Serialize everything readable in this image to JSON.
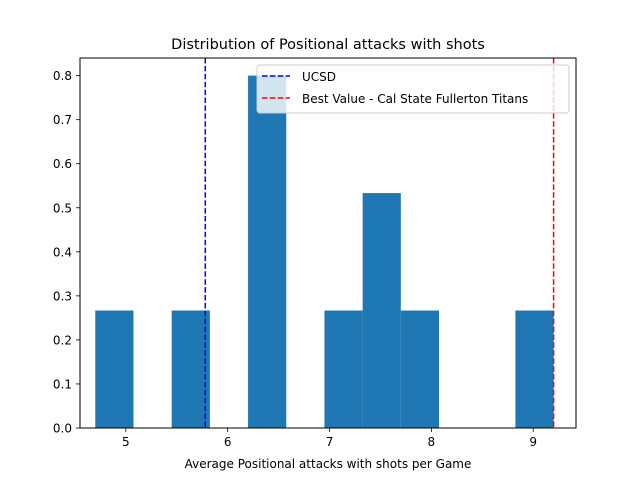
{
  "chart_data": {
    "type": "bar",
    "title": "Distribution of Positional attacks with shots",
    "xlabel": "Average Positional attacks with shots per Game",
    "ylabel": "",
    "xlim": [
      4.55,
      9.42
    ],
    "ylim": [
      0,
      0.84
    ],
    "x_ticks": [
      5,
      6,
      7,
      8,
      9
    ],
    "y_ticks": [
      0.0,
      0.1,
      0.2,
      0.3,
      0.4,
      0.5,
      0.6,
      0.7,
      0.8
    ],
    "grid": false,
    "legend_position": "upper right",
    "bar_color": "#1f77b4",
    "bins": [
      {
        "x0": 4.7,
        "x1": 5.075,
        "value": 0.2667
      },
      {
        "x0": 5.075,
        "x1": 5.45,
        "value": 0.0
      },
      {
        "x0": 5.45,
        "x1": 5.825,
        "value": 0.2667
      },
      {
        "x0": 5.825,
        "x1": 6.2,
        "value": 0.0
      },
      {
        "x0": 6.2,
        "x1": 6.575,
        "value": 0.8
      },
      {
        "x0": 6.575,
        "x1": 6.95,
        "value": 0.0
      },
      {
        "x0": 6.95,
        "x1": 7.325,
        "value": 0.2667
      },
      {
        "x0": 7.325,
        "x1": 7.7,
        "value": 0.5333
      },
      {
        "x0": 7.7,
        "x1": 8.075,
        "value": 0.2667
      },
      {
        "x0": 8.075,
        "x1": 8.45,
        "value": 0.0
      },
      {
        "x0": 8.45,
        "x1": 8.825,
        "value": 0.0
      },
      {
        "x0": 8.825,
        "x1": 9.2,
        "value": 0.2667
      }
    ],
    "reference_lines": [
      {
        "name": "UCSD",
        "x": 5.78,
        "color": "#0000ff",
        "style": "dashed"
      },
      {
        "name": "Best Value - Cal State Fullerton Titans",
        "x": 9.2,
        "color": "#ff0000",
        "style": "dashed"
      }
    ]
  }
}
